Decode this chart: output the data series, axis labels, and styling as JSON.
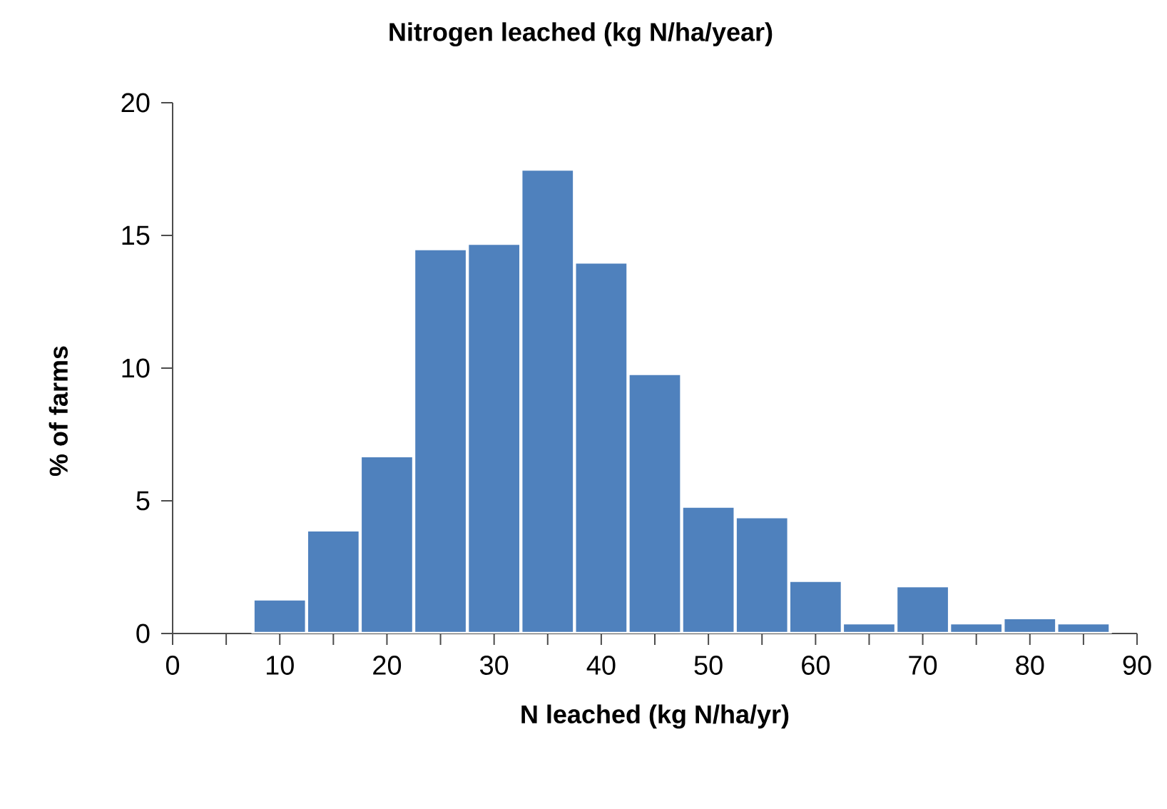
{
  "chart_data": {
    "type": "histogram",
    "title": "Nitrogen leached (kg N/ha/year)",
    "xlabel": "N leached (kg N/ha/yr)",
    "ylabel": "% of farms",
    "bins": [
      7.5,
      12.5,
      17.5,
      22.5,
      27.5,
      32.5,
      37.5,
      42.5,
      47.5,
      52.5,
      57.5,
      62.5,
      67.5,
      72.5,
      77.5,
      82.5,
      87.5
    ],
    "values": [
      1.3,
      3.9,
      6.7,
      14.5,
      14.7,
      17.5,
      14.0,
      9.8,
      4.8,
      4.4,
      2.0,
      0.4,
      1.8,
      0.4,
      0.6,
      0.4
    ],
    "color": "#4f81bd",
    "xlim": [
      0,
      90
    ],
    "xticks": [
      0,
      {
        "value": 5,
        "label": null
      },
      10,
      {
        "value": 15,
        "label": null
      },
      20,
      {
        "value": 25,
        "label": null
      },
      30,
      {
        "value": 35,
        "label": null
      },
      40,
      {
        "value": 45,
        "label": null
      },
      50,
      {
        "value": 55,
        "label": null
      },
      60,
      {
        "value": 65,
        "label": null
      },
      70,
      {
        "value": 75,
        "label": null
      },
      80,
      {
        "value": 85,
        "label": null
      },
      90
    ],
    "ylim": [
      0,
      20
    ],
    "yticks": [
      0,
      5,
      10,
      15,
      20
    ],
    "grid": false
  }
}
